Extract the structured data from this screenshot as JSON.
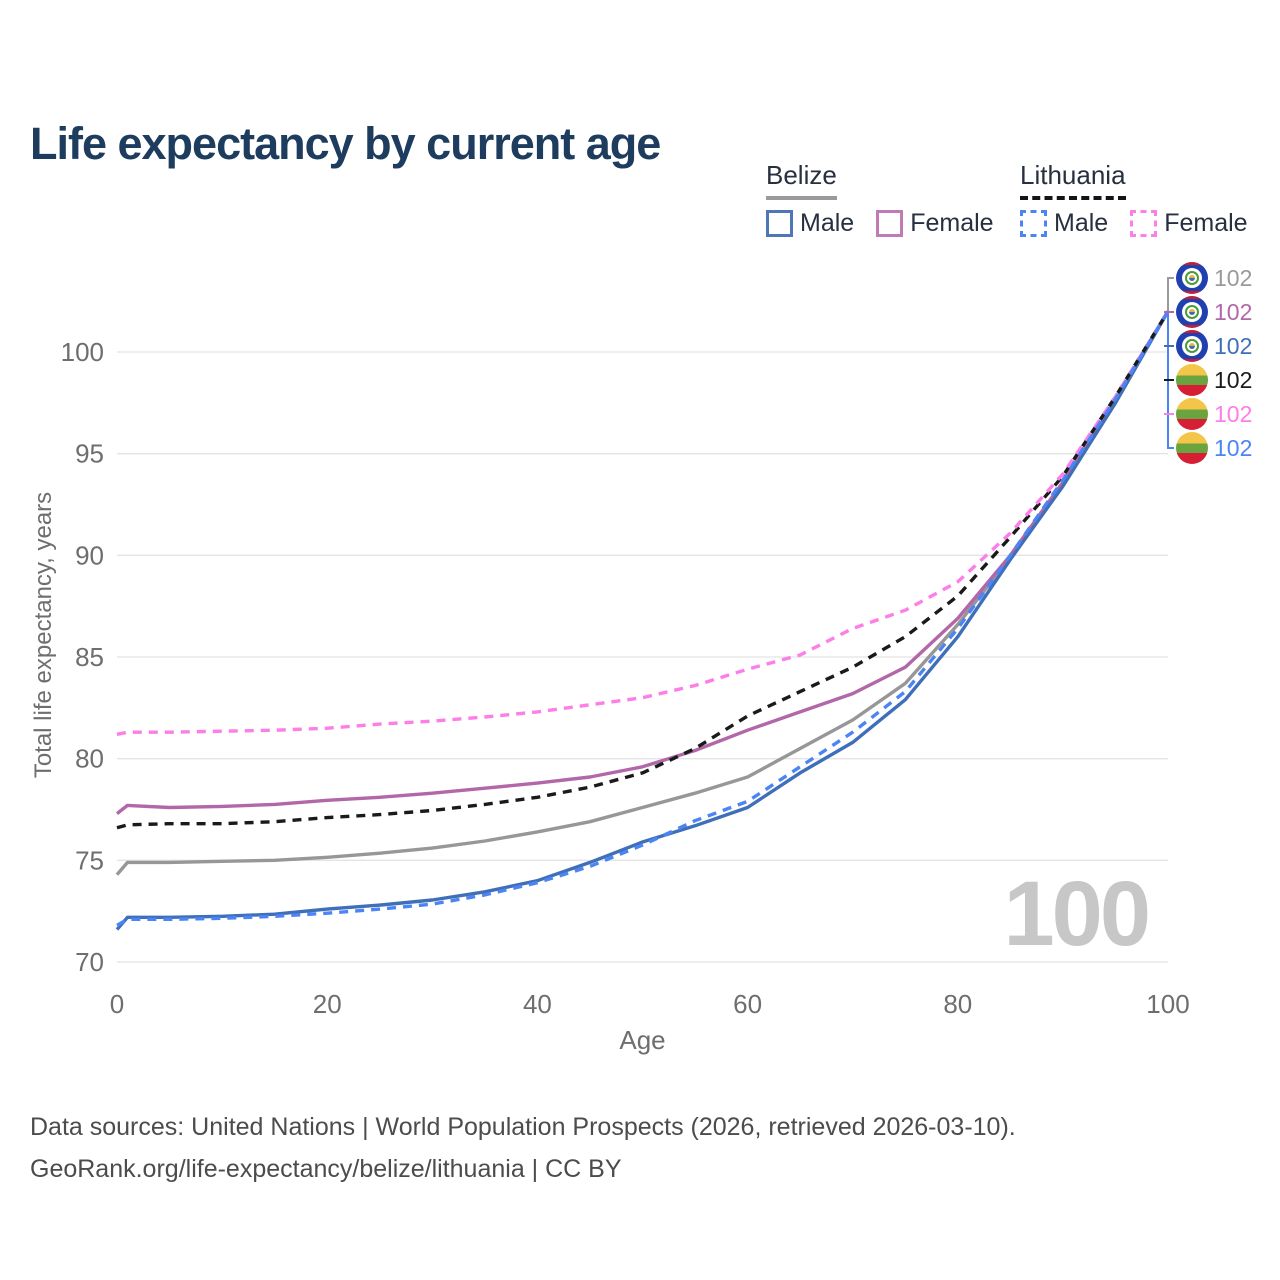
{
  "title": "Life expectancy by current age",
  "legend": {
    "belize": {
      "label": "Belize",
      "male": "Male",
      "female": "Female"
    },
    "lithuania": {
      "label": "Lithuania",
      "male": "Male",
      "female": "Female"
    }
  },
  "watermark": "100",
  "end_labels": [
    {
      "country": "belize",
      "value": "102",
      "color": "#9a9a9a"
    },
    {
      "country": "belize",
      "value": "102",
      "color": "#b267a9"
    },
    {
      "country": "belize",
      "value": "102",
      "color": "#3e6fb8"
    },
    {
      "country": "lithuania",
      "value": "102",
      "color": "#1a1a1a"
    },
    {
      "country": "lithuania",
      "value": "102",
      "color": "#fd7de9"
    },
    {
      "country": "lithuania",
      "value": "102",
      "color": "#4d84f4"
    }
  ],
  "footer": {
    "line1": "Data sources: United Nations | World Population Prospects (2026, retrieved 2026-03-10).",
    "line2": "GeoRank.org/life-expectancy/belize/lithuania | CC BY"
  },
  "chart_data": {
    "type": "line",
    "title": "Life expectancy by current age",
    "xlabel": "Age",
    "ylabel": "Total life expectancy, years",
    "xlim": [
      0,
      100
    ],
    "ylim": [
      70,
      102
    ],
    "x_ticks": [
      0,
      20,
      40,
      60,
      80,
      100
    ],
    "y_ticks": [
      70,
      75,
      80,
      85,
      90,
      95,
      100
    ],
    "grid": "horizontal",
    "legend_position": "top-right",
    "x": [
      0,
      1,
      5,
      10,
      15,
      20,
      25,
      30,
      35,
      40,
      45,
      50,
      55,
      60,
      65,
      70,
      75,
      80,
      85,
      90,
      95,
      100
    ],
    "series": [
      {
        "name": "Belize Both sexes",
        "country": "Belize",
        "sex": "both",
        "color": "#979797",
        "dash": "solid",
        "values": [
          74.3,
          74.9,
          74.9,
          74.95,
          75.0,
          75.15,
          75.35,
          75.6,
          75.95,
          76.4,
          76.9,
          77.6,
          78.3,
          79.1,
          80.5,
          81.9,
          83.7,
          86.6,
          89.9,
          93.5,
          97.5,
          102
        ]
      },
      {
        "name": "Belize Female",
        "country": "Belize",
        "sex": "female",
        "color": "#b267a9",
        "dash": "solid",
        "values": [
          77.3,
          77.7,
          77.6,
          77.65,
          77.75,
          77.95,
          78.1,
          78.3,
          78.55,
          78.8,
          79.1,
          79.6,
          80.4,
          81.4,
          82.3,
          83.2,
          84.5,
          86.9,
          90.0,
          93.6,
          97.6,
          102
        ]
      },
      {
        "name": "Belize Male",
        "country": "Belize",
        "sex": "male",
        "color": "#3e6fb8",
        "dash": "solid",
        "values": [
          71.6,
          72.2,
          72.2,
          72.25,
          72.35,
          72.6,
          72.8,
          73.05,
          73.45,
          74.0,
          74.9,
          75.9,
          76.7,
          77.6,
          79.3,
          80.8,
          82.9,
          86.0,
          89.8,
          93.4,
          97.5,
          102
        ]
      },
      {
        "name": "Lithuania Both sexes",
        "country": "Lithuania",
        "sex": "both",
        "color": "#1a1a1a",
        "dash": "dashed",
        "values": [
          76.6,
          76.75,
          76.8,
          76.8,
          76.9,
          77.1,
          77.25,
          77.45,
          77.75,
          78.1,
          78.6,
          79.3,
          80.5,
          82.1,
          83.3,
          84.5,
          86.0,
          88.0,
          90.9,
          93.9,
          97.8,
          102
        ]
      },
      {
        "name": "Lithuania Female",
        "country": "Lithuania",
        "sex": "female",
        "color": "#fd7de9",
        "dash": "dashed",
        "values": [
          81.2,
          81.3,
          81.3,
          81.35,
          81.4,
          81.5,
          81.7,
          81.85,
          82.05,
          82.3,
          82.65,
          83.0,
          83.6,
          84.4,
          85.1,
          86.4,
          87.3,
          88.7,
          91.1,
          94.0,
          97.8,
          102
        ]
      },
      {
        "name": "Lithuania Male",
        "country": "Lithuania",
        "sex": "male",
        "color": "#4d84f4",
        "dash": "dashed",
        "values": [
          71.8,
          72.1,
          72.1,
          72.15,
          72.25,
          72.4,
          72.6,
          72.85,
          73.3,
          73.9,
          74.7,
          75.75,
          76.95,
          77.9,
          79.6,
          81.3,
          83.3,
          86.4,
          90.0,
          93.7,
          97.7,
          102
        ]
      }
    ],
    "end_value_label": "102"
  }
}
